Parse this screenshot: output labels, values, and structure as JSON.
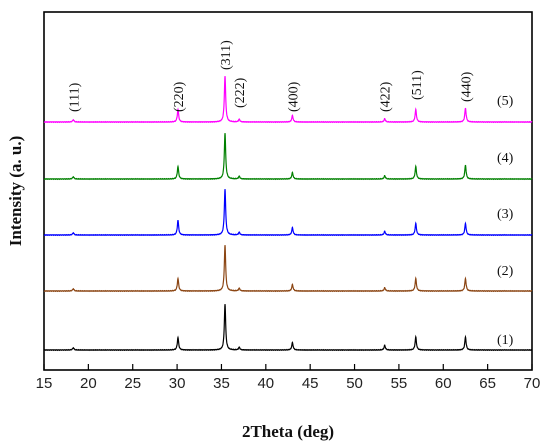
{
  "chart_data": {
    "type": "line",
    "title": "",
    "xlabel": "2Theta (deg)",
    "ylabel": "Intensity (a. u.)",
    "xlim": [
      15,
      70
    ],
    "xticks": [
      15,
      20,
      25,
      30,
      35,
      40,
      45,
      50,
      55,
      60,
      65,
      70
    ],
    "yticks_shown": false,
    "peak_labels": [
      {
        "label": "(111)",
        "x": 18.3
      },
      {
        "label": "(220)",
        "x": 30.1
      },
      {
        "label": "(311)",
        "x": 35.4
      },
      {
        "label": "(222)",
        "x": 37.0
      },
      {
        "label": "(400)",
        "x": 43.0
      },
      {
        "label": "(422)",
        "x": 53.4
      },
      {
        "label": "(511)",
        "x": 56.9
      },
      {
        "label": "(440)",
        "x": 62.5
      }
    ],
    "series": [
      {
        "label": "(5)",
        "color": "#ff00ff",
        "peaks": [
          [
            18.3,
            0.05
          ],
          [
            30.1,
            0.27
          ],
          [
            35.4,
            1.0
          ],
          [
            37.0,
            0.06
          ],
          [
            43.0,
            0.14
          ],
          [
            53.4,
            0.07
          ],
          [
            56.9,
            0.27
          ],
          [
            62.5,
            0.3
          ]
        ]
      },
      {
        "label": "(4)",
        "color": "#008000",
        "peaks": [
          [
            18.3,
            0.05
          ],
          [
            30.1,
            0.27
          ],
          [
            35.4,
            1.0
          ],
          [
            37.0,
            0.06
          ],
          [
            43.0,
            0.14
          ],
          [
            53.4,
            0.07
          ],
          [
            56.9,
            0.27
          ],
          [
            62.5,
            0.3
          ]
        ]
      },
      {
        "label": "(3)",
        "color": "#0000ff",
        "peaks": [
          [
            18.3,
            0.05
          ],
          [
            30.1,
            0.32
          ],
          [
            35.4,
            1.0
          ],
          [
            37.0,
            0.06
          ],
          [
            43.0,
            0.16
          ],
          [
            53.4,
            0.08
          ],
          [
            56.9,
            0.25
          ],
          [
            62.5,
            0.25
          ]
        ]
      },
      {
        "label": "(2)",
        "color": "#8b4513",
        "peaks": [
          [
            18.3,
            0.05
          ],
          [
            30.1,
            0.27
          ],
          [
            35.4,
            1.0
          ],
          [
            37.0,
            0.06
          ],
          [
            43.0,
            0.14
          ],
          [
            53.4,
            0.07
          ],
          [
            56.9,
            0.27
          ],
          [
            62.5,
            0.27
          ]
        ]
      },
      {
        "label": "(1)",
        "color": "#000000",
        "peaks": [
          [
            18.3,
            0.05
          ],
          [
            30.1,
            0.27
          ],
          [
            35.4,
            1.0
          ],
          [
            37.0,
            0.06
          ],
          [
            43.0,
            0.16
          ],
          [
            53.4,
            0.1
          ],
          [
            56.9,
            0.28
          ],
          [
            62.5,
            0.28
          ]
        ]
      }
    ]
  }
}
